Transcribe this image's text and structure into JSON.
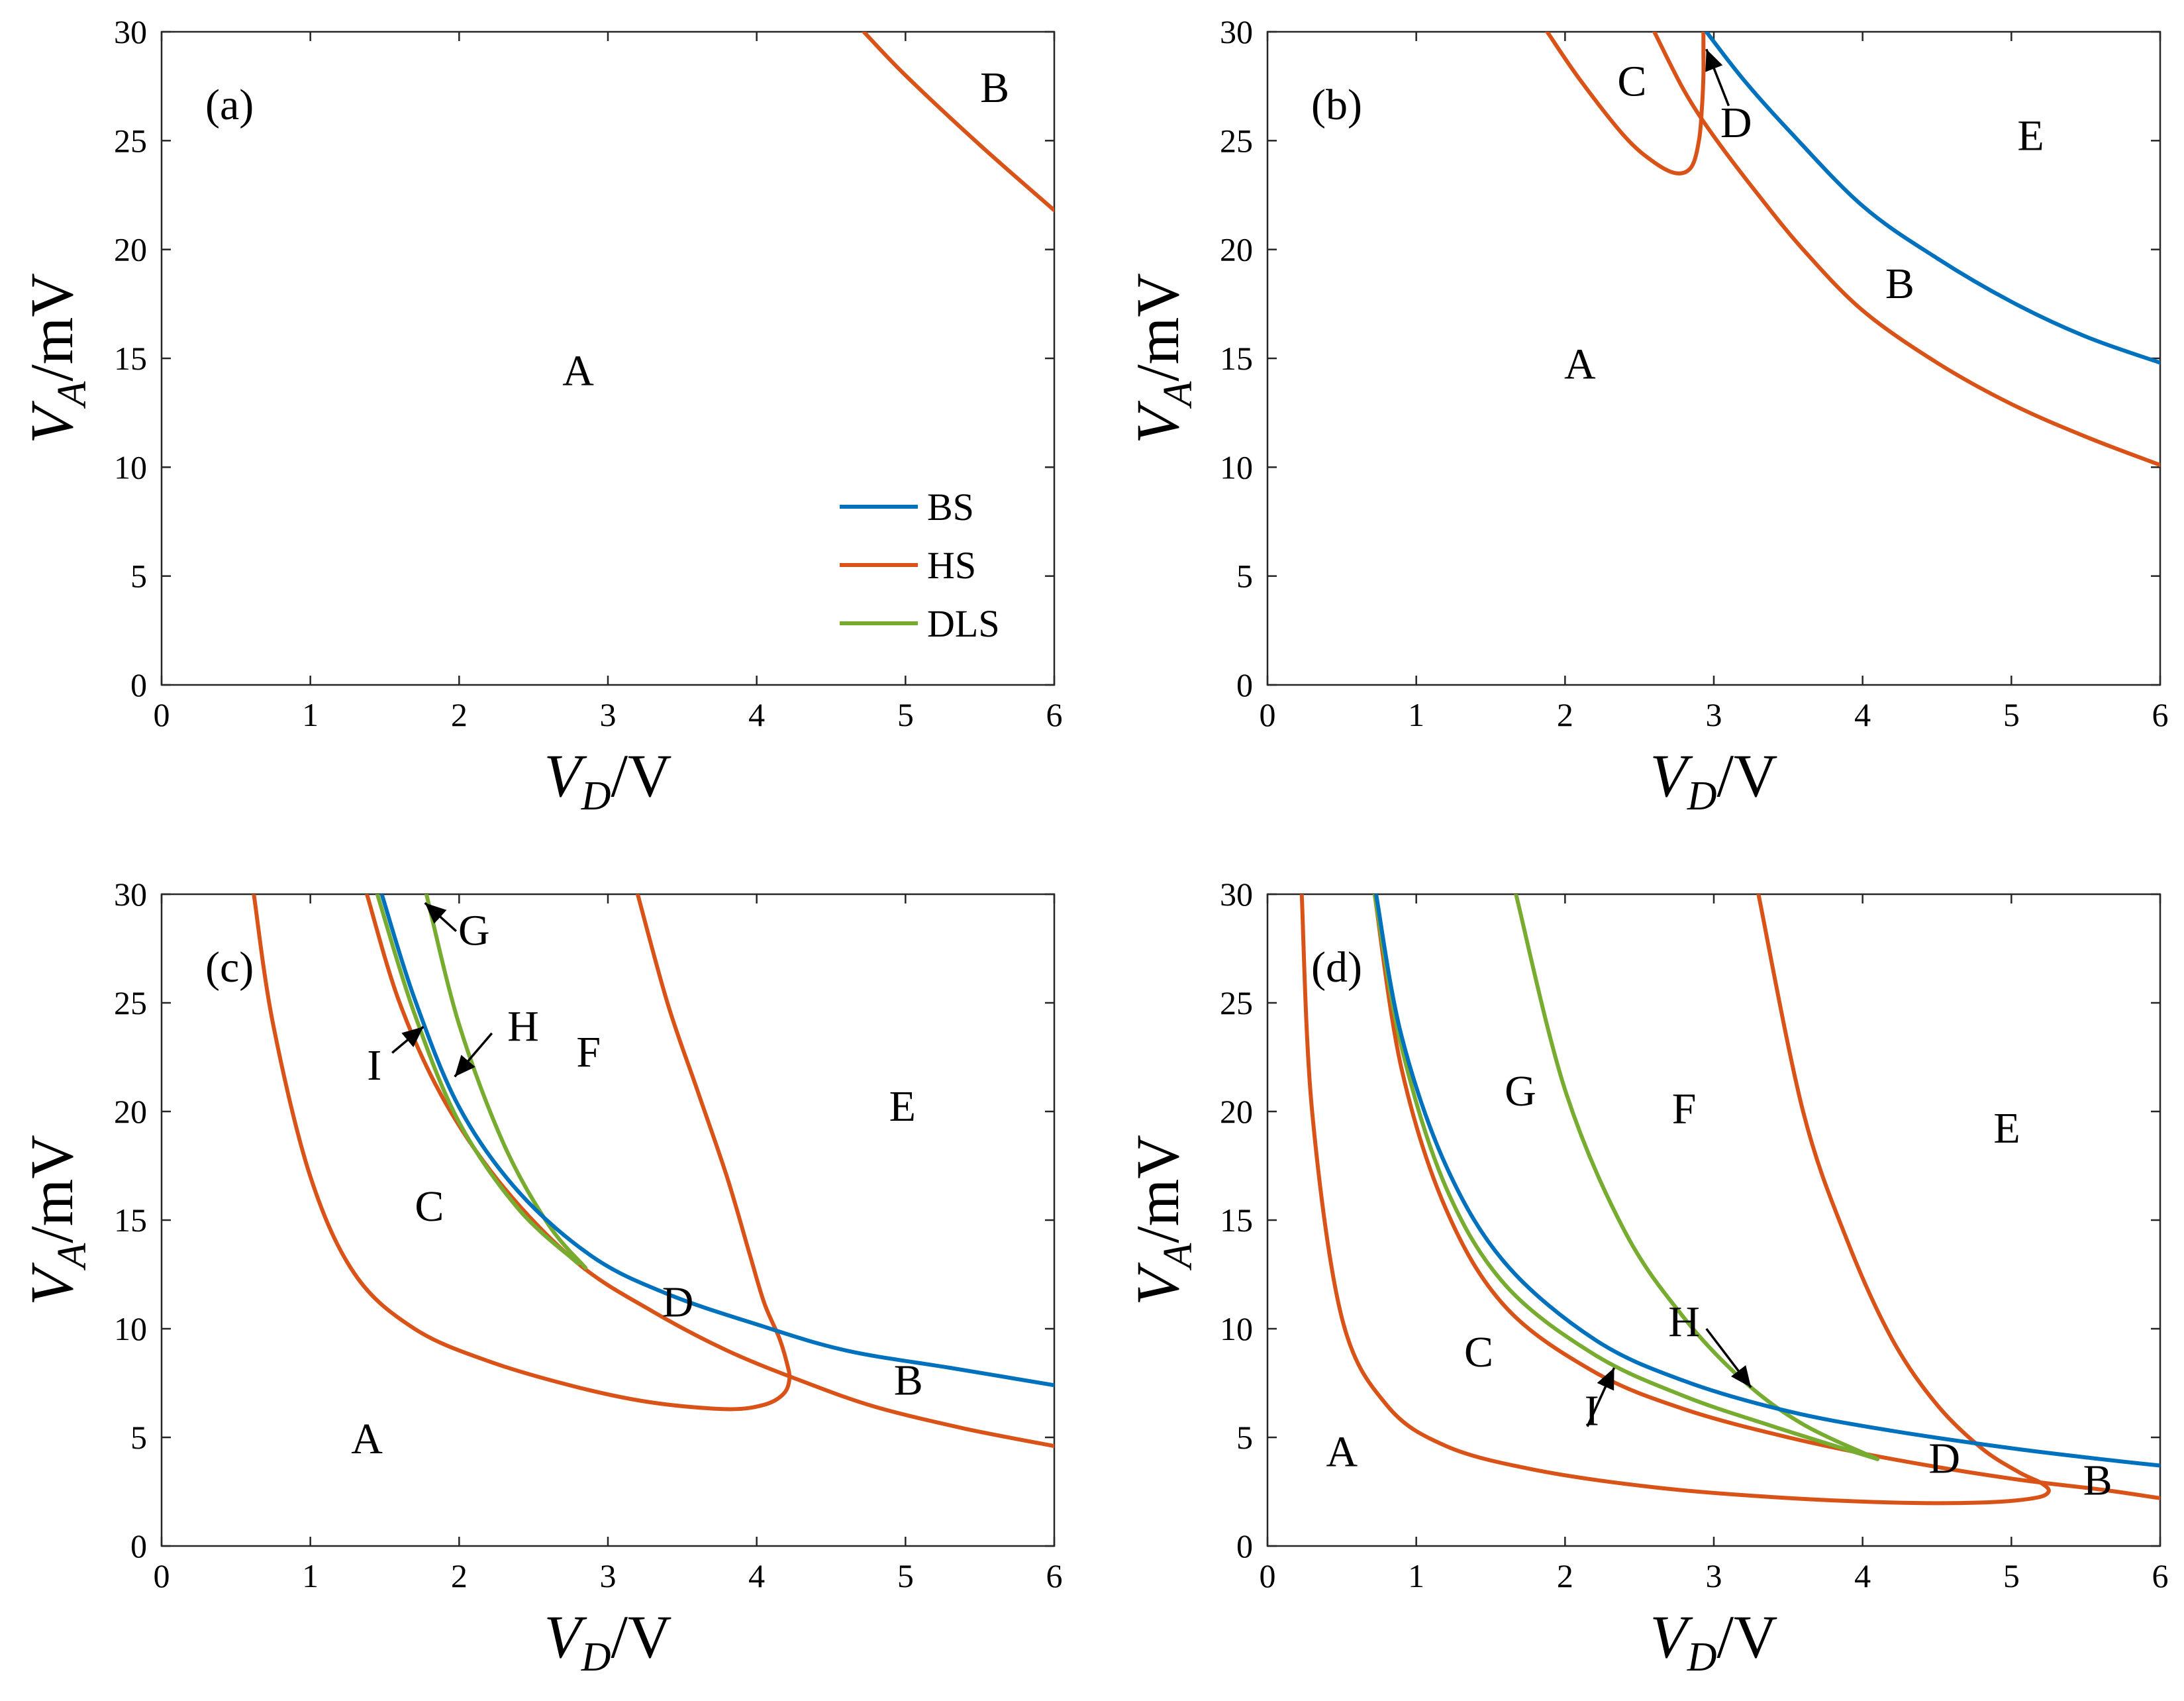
{
  "figure": {
    "xlabel": {
      "var": "V",
      "sub": "D",
      "unit": "/V"
    },
    "ylabel": {
      "var": "V",
      "sub": "A",
      "unit": "/mV"
    },
    "xlim": [
      0,
      6
    ],
    "ylim": [
      0,
      30
    ],
    "x_ticks": [
      "0",
      "1",
      "2",
      "3",
      "4",
      "5",
      "6"
    ],
    "y_ticks": [
      "0",
      "5",
      "10",
      "15",
      "20",
      "25",
      "30"
    ]
  },
  "colors": {
    "BS": "#0072BD",
    "HS": "#D95319",
    "DLS": "#77AC30"
  },
  "legend": [
    {
      "name": "BS",
      "color": "#0072BD"
    },
    {
      "name": "HS",
      "color": "#D95319"
    },
    {
      "name": "DLS",
      "color": "#77AC30"
    }
  ],
  "chart_data": [
    {
      "type": "line",
      "panel_label": "(a)",
      "xlabel": "V_D/V",
      "ylabel": "V_A/mV",
      "xlim": [
        0,
        6
      ],
      "ylim": [
        0,
        30
      ],
      "grid": false,
      "legend_position": "bottom-right",
      "series": [
        {
          "name": "HS",
          "kind": "HS",
          "x": [
            4.72,
            5.0,
            5.5,
            6.0
          ],
          "y": [
            30,
            28.0,
            24.8,
            21.8
          ]
        }
      ],
      "regions": [
        {
          "label": "A",
          "x": 2.8,
          "y": 14.5
        },
        {
          "label": "B",
          "x": 5.6,
          "y": 27.5
        }
      ],
      "arrows": []
    },
    {
      "type": "line",
      "panel_label": "(b)",
      "xlabel": "V_D/V",
      "ylabel": "V_A/mV",
      "xlim": [
        0,
        6
      ],
      "ylim": [
        0,
        30
      ],
      "grid": false,
      "series": [
        {
          "kind": "HS",
          "x": [
            1.88,
            2.1,
            2.4,
            2.6,
            2.75,
            2.85,
            2.9,
            2.92,
            2.93,
            2.93,
            2.93
          ],
          "y": [
            30,
            27.8,
            25.2,
            24.0,
            23.5,
            23.8,
            25.0,
            26.5,
            28.0,
            29.0,
            30
          ]
        },
        {
          "kind": "HS",
          "x": [
            2.6,
            2.8,
            3.0,
            3.3,
            3.6,
            4.0,
            4.5,
            5.0,
            5.5,
            6.0
          ],
          "y": [
            30,
            27.3,
            25.2,
            22.5,
            20.0,
            17.2,
            14.8,
            12.9,
            11.4,
            10.1
          ]
        },
        {
          "kind": "BS",
          "x": [
            2.95,
            3.2,
            3.5,
            4.0,
            4.5,
            5.0,
            5.5,
            6.0
          ],
          "y": [
            30,
            27.8,
            25.5,
            22.0,
            19.6,
            17.6,
            16.0,
            14.8
          ]
        }
      ],
      "regions": [
        {
          "label": "A",
          "x": 2.1,
          "y": 14.8
        },
        {
          "label": "B",
          "x": 4.25,
          "y": 18.5
        },
        {
          "label": "C",
          "x": 2.45,
          "y": 27.8
        },
        {
          "label": "D",
          "x": 3.15,
          "y": 25.9
        },
        {
          "label": "E",
          "x": 5.13,
          "y": 25.3
        }
      ],
      "arrows": [
        {
          "from": [
            3.1,
            26.6
          ],
          "to": [
            2.95,
            29.2
          ]
        }
      ]
    },
    {
      "type": "line",
      "panel_label": "(c)",
      "xlabel": "V_D/V",
      "ylabel": "V_A/mV",
      "xlim": [
        0,
        6
      ],
      "ylim": [
        0,
        30
      ],
      "grid": false,
      "series": [
        {
          "kind": "HS",
          "x": [
            0.62,
            0.75,
            1.0,
            1.3,
            1.7,
            2.2,
            2.8,
            3.3,
            3.8,
            4.05,
            4.18,
            4.22,
            4.2,
            4.15,
            4.05,
            3.95,
            3.8,
            3.6,
            3.4,
            3.2
          ],
          "y": [
            30,
            24.0,
            17.0,
            12.5,
            10.0,
            8.5,
            7.3,
            6.6,
            6.3,
            6.5,
            7.0,
            7.7,
            8.5,
            9.6,
            11.2,
            13.5,
            17.0,
            21.0,
            25.0,
            30
          ]
        },
        {
          "kind": "HS",
          "x": [
            1.38,
            1.6,
            1.9,
            2.3,
            2.8,
            3.3,
            3.8,
            4.3,
            4.8,
            5.4,
            6.0
          ],
          "y": [
            30,
            25.0,
            20.5,
            16.5,
            13.0,
            10.8,
            9.0,
            7.6,
            6.4,
            5.4,
            4.6
          ]
        },
        {
          "kind": "DLS",
          "x": [
            1.45,
            1.7,
            2.0,
            2.4,
            2.8
          ],
          "y": [
            30,
            24.5,
            19.5,
            15.5,
            13.0
          ]
        },
        {
          "kind": "DLS",
          "x": [
            1.78,
            2.0,
            2.3,
            2.6,
            2.85
          ],
          "y": [
            30,
            24.0,
            18.5,
            14.8,
            12.8
          ]
        },
        {
          "kind": "BS",
          "x": [
            1.48,
            1.7,
            2.0,
            2.4,
            2.9,
            3.4,
            4.0,
            4.6,
            5.3,
            6.0
          ],
          "y": [
            30,
            25.2,
            20.2,
            16.3,
            13.3,
            11.6,
            10.2,
            9.0,
            8.2,
            7.4
          ]
        }
      ],
      "regions": [
        {
          "label": "A",
          "x": 1.38,
          "y": 5.0
        },
        {
          "label": "B",
          "x": 5.02,
          "y": 7.7
        },
        {
          "label": "C",
          "x": 1.8,
          "y": 15.7
        },
        {
          "label": "D",
          "x": 3.47,
          "y": 11.3
        },
        {
          "label": "E",
          "x": 4.98,
          "y": 20.3
        },
        {
          "label": "F",
          "x": 2.87,
          "y": 22.8
        },
        {
          "label": "G",
          "x": 2.1,
          "y": 28.4
        },
        {
          "label": "H",
          "x": 2.43,
          "y": 24.0
        },
        {
          "label": "I",
          "x": 1.43,
          "y": 22.2
        }
      ],
      "arrows": [
        {
          "from": [
            1.98,
            28.3
          ],
          "to": [
            1.77,
            29.6
          ]
        },
        {
          "from": [
            1.55,
            22.7
          ],
          "to": [
            1.76,
            23.9
          ]
        },
        {
          "from": [
            2.22,
            23.6
          ],
          "to": [
            1.97,
            21.6
          ]
        }
      ]
    },
    {
      "type": "line",
      "panel_label": "(d)",
      "xlabel": "V_D/V",
      "ylabel": "V_A/mV",
      "xlim": [
        0,
        6
      ],
      "ylim": [
        0,
        30
      ],
      "grid": false,
      "series": [
        {
          "kind": "HS",
          "x": [
            0.23,
            0.3,
            0.5,
            0.8,
            1.2,
            1.8,
            2.6,
            3.4,
            4.2,
            4.8,
            5.15,
            5.25,
            5.2,
            5.05,
            4.8,
            4.5,
            4.2,
            3.9,
            3.6,
            3.3
          ],
          "y": [
            30,
            20.0,
            10.5,
            6.5,
            4.6,
            3.5,
            2.7,
            2.25,
            2.0,
            2.0,
            2.2,
            2.5,
            2.9,
            3.4,
            4.5,
            6.5,
            9.5,
            14.0,
            20.0,
            30
          ]
        },
        {
          "kind": "HS",
          "x": [
            0.72,
            0.9,
            1.2,
            1.6,
            2.2,
            2.8,
            3.5,
            4.2,
            5.0,
            5.6,
            6.0
          ],
          "y": [
            30,
            22.0,
            15.5,
            11.0,
            8.0,
            6.3,
            5.0,
            4.0,
            3.1,
            2.6,
            2.2
          ]
        },
        {
          "kind": "DLS",
          "x": [
            0.72,
            0.9,
            1.2,
            1.6,
            2.2,
            2.8,
            3.4,
            4.1
          ],
          "y": [
            30,
            23.0,
            16.5,
            12.0,
            8.8,
            6.9,
            5.5,
            4.0
          ]
        },
        {
          "kind": "DLS",
          "x": [
            1.67,
            2.0,
            2.4,
            2.8,
            3.2,
            3.6,
            4.1
          ],
          "y": [
            30,
            21.0,
            14.5,
            10.5,
            7.6,
            5.6,
            4.0
          ]
        },
        {
          "kind": "BS",
          "x": [
            0.73,
            0.9,
            1.2,
            1.6,
            2.2,
            2.8,
            3.5,
            4.2,
            5.0,
            5.6,
            6.0
          ],
          "y": [
            30,
            23.5,
            17.5,
            13.0,
            9.5,
            7.6,
            6.2,
            5.3,
            4.5,
            4.0,
            3.7
          ]
        }
      ],
      "regions": [
        {
          "label": "A",
          "x": 0.5,
          "y": 4.4
        },
        {
          "label": "B",
          "x": 5.58,
          "y": 3.1
        },
        {
          "label": "C",
          "x": 1.42,
          "y": 9.0
        },
        {
          "label": "D",
          "x": 4.55,
          "y": 4.1
        },
        {
          "label": "E",
          "x": 4.97,
          "y": 19.3
        },
        {
          "label": "F",
          "x": 2.8,
          "y": 20.2
        },
        {
          "label": "G",
          "x": 1.7,
          "y": 21.0
        },
        {
          "label": "H",
          "x": 2.8,
          "y": 10.4
        },
        {
          "label": "I",
          "x": 2.18,
          "y": 6.3
        }
      ],
      "arrows": [
        {
          "from": [
            2.95,
            10.0
          ],
          "to": [
            3.25,
            7.3
          ]
        },
        {
          "from": [
            2.15,
            5.5
          ],
          "to": [
            2.33,
            8.2
          ]
        }
      ]
    }
  ]
}
